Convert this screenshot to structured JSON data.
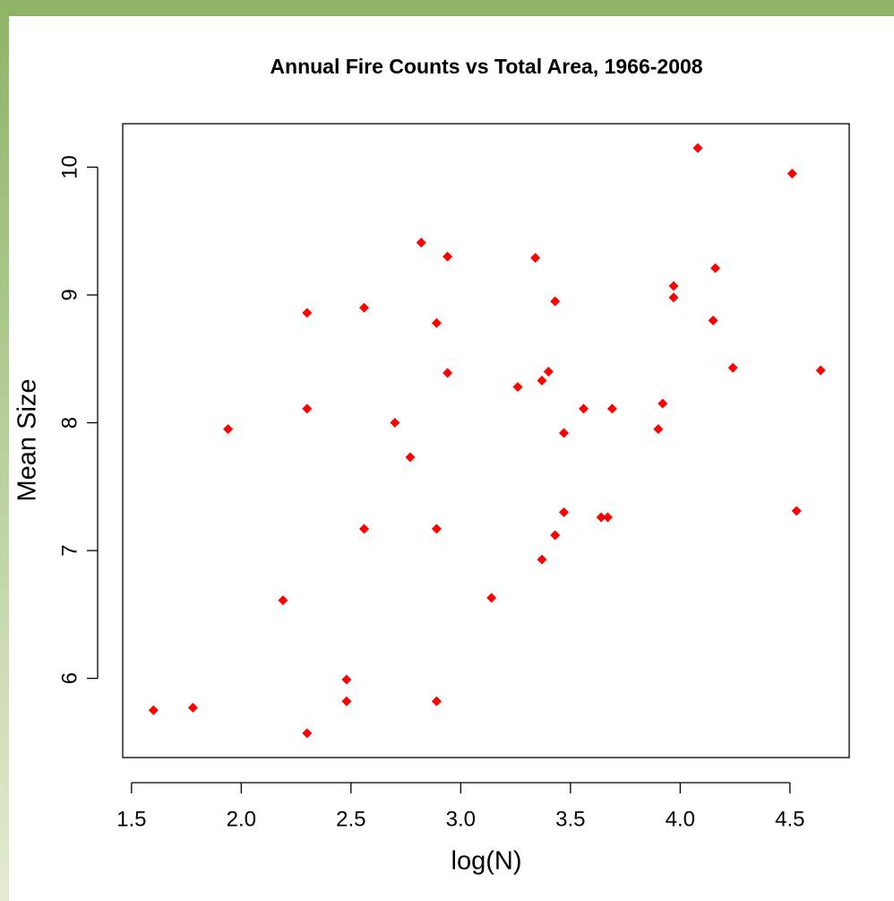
{
  "chart_data": {
    "type": "scatter",
    "title": "Annual Fire Counts vs Total Area, 1966-2008",
    "xlabel": "log(N)",
    "ylabel": "Mean Size",
    "color": "#ff0000",
    "x": [
      1.6,
      1.78,
      1.94,
      2.19,
      2.3,
      2.3,
      2.3,
      2.48,
      2.48,
      2.56,
      2.56,
      2.7,
      2.77,
      2.82,
      2.89,
      2.89,
      2.89,
      2.94,
      2.94,
      3.14,
      3.26,
      3.34,
      3.37,
      3.37,
      3.4,
      3.43,
      3.43,
      3.47,
      3.47,
      3.56,
      3.64,
      3.67,
      3.69,
      3.9,
      3.92,
      3.97,
      3.97,
      4.08,
      4.15,
      4.16,
      4.24,
      4.51,
      4.53,
      4.64
    ],
    "y": [
      5.75,
      5.77,
      7.95,
      6.61,
      8.86,
      8.11,
      5.57,
      5.99,
      5.82,
      8.9,
      7.17,
      8.0,
      7.73,
      9.41,
      8.78,
      7.17,
      5.82,
      9.3,
      8.39,
      6.63,
      8.28,
      9.29,
      8.33,
      6.93,
      8.4,
      8.95,
      7.12,
      7.92,
      7.3,
      8.11,
      7.26,
      7.26,
      8.11,
      7.95,
      8.15,
      9.07,
      8.98,
      10.15,
      8.8,
      9.21,
      8.43,
      9.95,
      7.31,
      8.41
    ],
    "xlim": [
      1.46,
      4.77
    ],
    "ylim": [
      5.38,
      10.34
    ],
    "xticks": [
      1.5,
      {
        "value": 2,
        "label": "2.0"
      },
      2.5,
      {
        "value": 3,
        "label": "3.0"
      },
      3.5,
      {
        "value": 4,
        "label": "4.0"
      },
      4.5
    ],
    "yticks": [
      6,
      7,
      8,
      9,
      10
    ]
  }
}
